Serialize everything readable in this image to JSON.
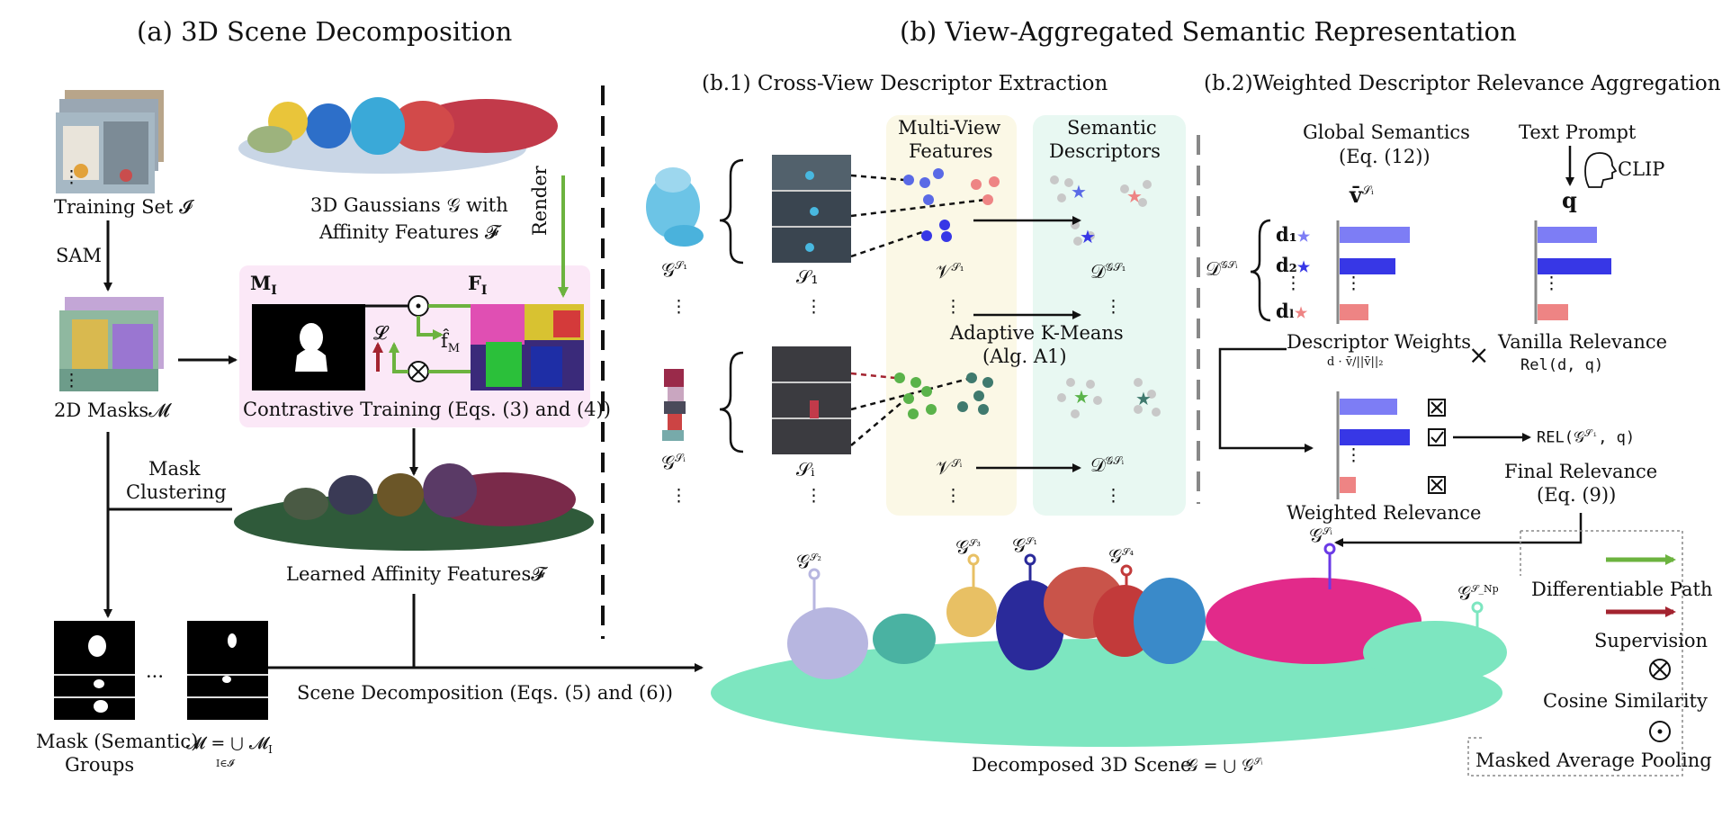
{
  "section_a": {
    "title": "(a) 3D Scene Decomposition",
    "training_set": "Training Set 𝓘",
    "sam": "SAM",
    "gaussians_line1": "3D Gaussians 𝒢 with",
    "gaussians_line2": "Affinity Features 𝓕",
    "render": "Render",
    "masks_2d": "2D Masks𝓜",
    "m_i": "M",
    "m_i_sub": "I",
    "f_i": "F",
    "f_i_sub": "I",
    "loss": "𝓛",
    "f_hat": "f̂",
    "f_hat_sub": "M",
    "contrastive": "Contrastive Training (Eqs. (3) and (4))",
    "mask_clustering_line1": "Mask",
    "mask_clustering_line2": "Clustering",
    "learned_affinity": "Learned Affinity Features𝓕",
    "scene_decomp": "Scene Decomposition (Eqs. (5) and (6))",
    "mask_groups_line1": "Mask (Semantic)",
    "mask_groups_line2": "Groups",
    "mask_union": "𝓜 = ⋃ 𝓜",
    "mask_union_sub": "I",
    "mask_union_under": "I∈𝓘",
    "ellipsis": "···",
    "vdots": "⋮"
  },
  "section_b": {
    "title": "(b) View-Aggregated Semantic Representation",
    "b1_title": "(b.1) Cross-View Descriptor Extraction",
    "b2_title": "(b.2)Weighted Descriptor Relevance Aggregation",
    "multi_view_line1": "Multi-View",
    "multi_view_line2": "Features",
    "semantic_desc_line1": "Semantic",
    "semantic_desc_line2": "Descriptors",
    "g_s1": "𝒢",
    "g_s1_sup": "𝒮₁",
    "g_si_sup": "𝒮ᵢ",
    "s_1": "𝒮₁",
    "s_i": "𝒮ᵢ",
    "v_s1": "𝒱",
    "d_g": "𝒟",
    "adaptive_line1": "Adaptive K-Means",
    "adaptive_line2": "(Alg. A1)",
    "global_sem_line1": "Global Semantics",
    "global_sem_line2": "(Eq. (12))",
    "v_bar": "v̄",
    "text_prompt": "Text Prompt",
    "clip": "CLIP",
    "q": "q",
    "d_1": "d₁",
    "d_2": "d₂",
    "d_l": "dₗ",
    "descriptor_weights": "Descriptor Weights",
    "descriptor_weights_formula": "d · v̄/||v̄||₂",
    "times": "×",
    "vanilla_relevance": "Vanilla Relevance",
    "rel_dq": "Rel(d, q)",
    "rel_final": "REL(𝒢",
    "rel_final_tail": ", q)",
    "final_relevance_line1": "Final Relevance",
    "final_relevance_line2": "(Eq. (9))",
    "weighted_relevance": "Weighted Relevance",
    "scene_caption": "Decomposed 3D Scene",
    "scene_formula": "𝒢 = ⋃ 𝒢",
    "g_s2": "𝒮₂",
    "g_s3": "𝒮₃",
    "g_s4": "𝒮₄",
    "g_snp": "𝒮_Np"
  },
  "legend": {
    "differentiable": "Differentiable Path",
    "supervision": "Supervision",
    "cosine": "Cosine Similarity",
    "pooling": "Masked Average Pooling"
  },
  "colors": {
    "green_path": "#6cb33f",
    "supervision": "#a3232f",
    "multi_view_bg": "#fbf8e6",
    "semantic_bg": "#e8f8f2",
    "contrastive_bg": "#fbe8f7",
    "bar_light_blue": "#7d7df5",
    "bar_blue": "#3737e6",
    "bar_pink": "#ee8484"
  }
}
